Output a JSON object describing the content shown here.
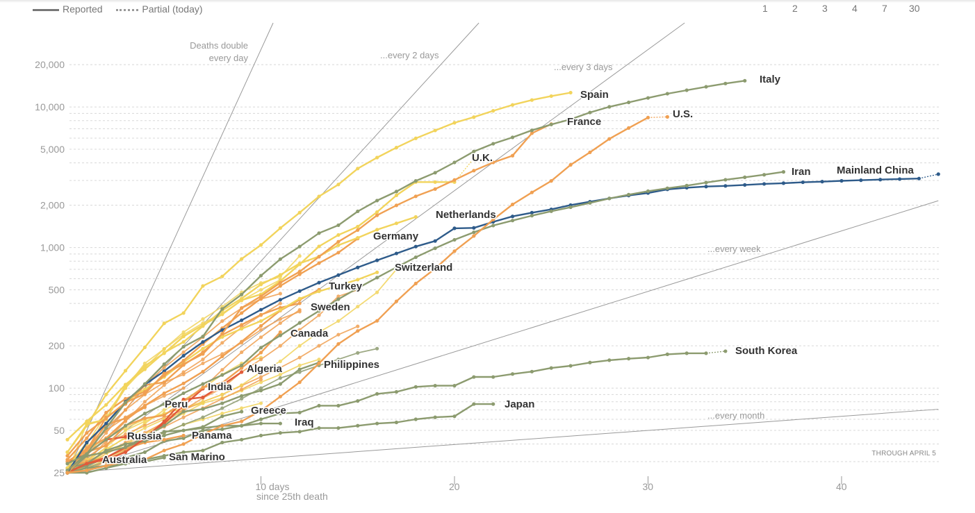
{
  "legend": {
    "reported": "Reported",
    "partial": "Partial (today)"
  },
  "doubling_selector": [
    "1",
    "2",
    "3",
    "4",
    "7",
    "30"
  ],
  "note": "THROUGH APRIL 5",
  "chart_data": {
    "type": "line",
    "xlabel": "since 25th death",
    "x_ticks": [
      {
        "value": 10,
        "label": "10 days"
      },
      {
        "value": 20,
        "label": "20"
      },
      {
        "value": 30,
        "label": "30"
      },
      {
        "value": 40,
        "label": "40"
      }
    ],
    "xlim": [
      0,
      45
    ],
    "y_scale": "log",
    "ylim": [
      25,
      30000
    ],
    "y_ticks": [
      {
        "value": 25,
        "label": "25"
      },
      {
        "value": 50,
        "label": "50"
      },
      {
        "value": 100,
        "label": "100"
      },
      {
        "value": 200,
        "label": "200"
      },
      {
        "value": 500,
        "label": "500"
      },
      {
        "value": 1000,
        "label": "1,000"
      },
      {
        "value": 2000,
        "label": "2,000"
      },
      {
        "value": 5000,
        "label": "5,000"
      },
      {
        "value": 10000,
        "label": "10,000"
      },
      {
        "value": 20000,
        "label": "20,000"
      }
    ],
    "grid": true,
    "colors": {
      "green": "#8c9b6f",
      "yellow": "#f2d45c",
      "orange": "#f0a052",
      "red": "#e15b3b",
      "blue": "#2e5b8a",
      "ref": "#999999"
    },
    "reference_lines": [
      {
        "doubling_days": 1,
        "label": [
          "Deaths double",
          "every day"
        ]
      },
      {
        "doubling_days": 2,
        "label": [
          "...every 2 days"
        ]
      },
      {
        "doubling_days": 3,
        "label": [
          "...every 3 days"
        ]
      },
      {
        "doubling_days": 7,
        "label": [
          "...every week"
        ]
      },
      {
        "doubling_days": 30,
        "label": [
          "...every month"
        ]
      }
    ],
    "series": [
      {
        "name": "Italy",
        "color": "green",
        "values": [
          29,
          34,
          52,
          79,
          107,
          148,
          197,
          233,
          366,
          463,
          631,
          827,
          1016,
          1266,
          1441,
          1809,
          2158,
          2503,
          2978,
          3405,
          4032,
          4825,
          5476,
          6077,
          6820,
          7503,
          8165,
          9134,
          10023,
          10779,
          11591,
          12428,
          13155,
          13915,
          14681,
          15362
        ]
      },
      {
        "name": "Spain",
        "color": "yellow",
        "values": [
          35,
          54,
          90,
          133,
          195,
          289,
          342,
          533,
          623,
          830,
          1043,
          1375,
          1772,
          2311,
          2808,
          3647,
          4365,
          5138,
          5982,
          6803,
          7716,
          8464,
          9387,
          10348,
          11198,
          11947,
          12641
        ]
      },
      {
        "name": "France",
        "color": "orange",
        "values": [
          33,
          48,
          61,
          79,
          91,
          127,
          148,
          175,
          244,
          372,
          450,
          562,
          674,
          860,
          1100,
          1331,
          1696,
          1995,
          2314,
          2606,
          3024,
          3523,
          4032,
          4503,
          6507,
          7560
        ]
      },
      {
        "name": "U.S.",
        "color": "orange",
        "values": [
          25,
          26,
          28,
          30,
          31,
          36,
          40,
          47,
          54,
          58,
          69,
          87,
          110,
          150,
          206,
          255,
          301,
          414,
          555,
          708,
          942,
          1209,
          1581,
          2026,
          2467,
          2978,
          3873,
          4757,
          5926,
          7087,
          8407
        ],
        "partial": 8500
      },
      {
        "name": "U.K.",
        "color": "yellow",
        "values": [
          35,
          55,
          60,
          104,
          144,
          177,
          233,
          281,
          335,
          422,
          465,
          578,
          759,
          1019,
          1228,
          1408,
          1789,
          2352,
          2921,
          2921,
          2921
        ],
        "partial": 4313
      },
      {
        "name": "Iran",
        "color": "green",
        "values": [
          26,
          34,
          43,
          54,
          66,
          77,
          92,
          107,
          124,
          145,
          194,
          237,
          291,
          354,
          429,
          514,
          611,
          724,
          853,
          988,
          1135,
          1284,
          1433,
          1556,
          1685,
          1812,
          1934,
          2077,
          2234,
          2378,
          2517,
          2640,
          2757,
          2898,
          3036,
          3160,
          3294,
          3452
        ]
      },
      {
        "name": "Mainland China",
        "color": "blue",
        "values": [
          25,
          41,
          56,
          80,
          106,
          132,
          170,
          213,
          259,
          304,
          361,
          425,
          490,
          563,
          637,
          722,
          811,
          908,
          1016,
          1113,
          1370,
          1380,
          1523,
          1665,
          1770,
          1868,
          2004,
          2118,
          2236,
          2345,
          2442,
          2592,
          2663,
          2715,
          2744,
          2788,
          2835,
          2870,
          2912,
          2943,
          2981,
          3012,
          3042,
          3070,
          3097
        ],
        "partial": 3326
      },
      {
        "name": "Netherlands",
        "color": "yellow",
        "values": [
          43,
          58,
          76,
          106,
          136,
          179,
          213,
          276,
          356,
          434,
          546,
          639,
          771,
          864,
          1039,
          1173,
          1339,
          1487,
          1651
        ]
      },
      {
        "name": "Germany",
        "color": "orange",
        "values": [
          31,
          44,
          67,
          84,
          94,
          123,
          157,
          206,
          267,
          342,
          433,
          533,
          645,
          775,
          920,
          1158
        ]
      },
      {
        "name": "Switzerland",
        "color": "yellow",
        "values": [
          27,
          41,
          56,
          80,
          98,
          120,
          153,
          191,
          231,
          264,
          300,
          359,
          433,
          488,
          536,
          591,
          666
        ]
      },
      {
        "name": "Turkey",
        "color": "orange",
        "values": [
          30,
          37,
          44,
          59,
          75,
          92,
          108,
          131,
          168,
          214,
          277,
          356,
          425,
          501
        ]
      },
      {
        "name": "Sweden",
        "color": "orange",
        "values": [
          25,
          36,
          62,
          77,
          105,
          110,
          146,
          180,
          239,
          282,
          333,
          373,
          401
        ]
      },
      {
        "name": "Canada",
        "color": "orange",
        "values": [
          25,
          35,
          39,
          54,
          61,
          64,
          80,
          101,
          109,
          139,
          179,
          250
        ]
      },
      {
        "name": "Philippines",
        "color": "green",
        "values": [
          25,
          33,
          35,
          38,
          45,
          54,
          68,
          71,
          78,
          88,
          96,
          107,
          136,
          152
        ]
      },
      {
        "name": "Algeria",
        "color": "red",
        "values": [
          25,
          29,
          31,
          35,
          44,
          58,
          83,
          86,
          105,
          130
        ]
      },
      {
        "name": "India",
        "color": "red",
        "values": [
          25,
          29,
          32,
          38,
          45,
          56,
          75,
          99
        ]
      },
      {
        "name": "Peru",
        "color": "orange",
        "values": [
          30,
          36,
          55,
          61,
          73
        ]
      },
      {
        "name": "Greece",
        "color": "green",
        "values": [
          26,
          28,
          32,
          38,
          43,
          49,
          50,
          53,
          63,
          68
        ]
      },
      {
        "name": "Iraq",
        "color": "green",
        "values": [
          27,
          29,
          36,
          40,
          42,
          46,
          50,
          52,
          54,
          54,
          56,
          56
        ]
      },
      {
        "name": "Panama",
        "color": "orange",
        "values": [
          27,
          30,
          32,
          37,
          41,
          43,
          46
        ]
      },
      {
        "name": "Russia",
        "color": "red",
        "values": [
          30,
          34,
          43,
          45
        ]
      },
      {
        "name": "Australia",
        "color": "orange",
        "values": [
          25,
          30
        ]
      },
      {
        "name": "San Marino",
        "color": "green",
        "values": [
          25,
          25,
          27,
          29,
          30,
          32
        ]
      },
      {
        "name": "South Korea",
        "color": "green",
        "values": [
          25,
          26,
          28,
          32,
          35,
          42,
          44,
          50,
          51,
          54,
          60,
          66,
          67,
          75,
          75,
          81,
          91,
          94,
          102,
          104,
          104,
          120,
          120,
          126,
          131,
          139,
          144,
          152,
          158,
          162,
          165,
          174,
          177,
          177
        ],
        "partial": 183
      },
      {
        "name": "Japan",
        "color": "green",
        "values": [
          25,
          27,
          28,
          29,
          31,
          33,
          35,
          36,
          41,
          43,
          46,
          48,
          49,
          52,
          52,
          54,
          56,
          57,
          60,
          62,
          63,
          77,
          77
        ]
      },
      {
        "color": "yellow",
        "values": [
          25,
          40,
          65,
          100,
          140,
          190,
          250,
          310,
          380,
          480,
          560,
          620,
          870
        ]
      },
      {
        "color": "orange",
        "values": [
          25,
          33,
          48,
          70,
          105,
          140,
          180,
          230,
          300,
          370,
          430,
          470
        ]
      },
      {
        "color": "orange",
        "values": [
          25,
          30,
          42,
          58,
          80,
          105,
          130,
          160,
          210,
          270,
          330,
          400
        ]
      },
      {
        "color": "yellow",
        "values": [
          25,
          28,
          36,
          45,
          56,
          70,
          82,
          100,
          125,
          150,
          165
        ]
      },
      {
        "color": "orange",
        "values": [
          25,
          35,
          52,
          70,
          90,
          110,
          125,
          150,
          175,
          210,
          260,
          310,
          350
        ]
      },
      {
        "color": "yellow",
        "values": [
          25,
          30,
          38,
          50,
          58,
          66,
          72,
          78,
          85,
          96,
          110,
          125,
          145,
          160
        ]
      },
      {
        "color": "orange",
        "values": [
          25,
          28,
          34,
          40,
          46,
          53,
          62,
          72,
          84,
          98,
          115
        ]
      },
      {
        "color": "yellow",
        "values": [
          25,
          27,
          31,
          36,
          42,
          48,
          55,
          60,
          66,
          72,
          78
        ]
      },
      {
        "color": "orange",
        "values": [
          25,
          32,
          40,
          47,
          54,
          62,
          70,
          80,
          90,
          104,
          120,
          140,
          165,
          200,
          240,
          275
        ]
      },
      {
        "color": "green",
        "values": [
          25,
          27,
          30,
          36,
          42,
          48,
          55,
          62,
          72,
          84,
          100,
          118,
          130,
          145,
          160,
          178,
          191
        ]
      },
      {
        "color": "yellow",
        "values": [
          25,
          29,
          34,
          40,
          47,
          56,
          66,
          78
        ]
      },
      {
        "color": "orange",
        "values": [
          25,
          38,
          50,
          62,
          75,
          88,
          100
        ]
      },
      {
        "color": "yellow",
        "values": [
          25,
          36,
          44,
          52,
          60,
          66,
          72,
          80,
          90,
          105,
          130,
          155,
          200,
          250,
          300,
          380,
          480,
          700
        ]
      },
      {
        "color": "orange",
        "values": [
          25,
          30,
          35,
          41,
          48,
          57,
          70,
          85,
          100,
          130,
          160,
          200,
          260,
          330,
          450,
          500
        ]
      },
      {
        "color": "yellow",
        "values": [
          25,
          31,
          37,
          44,
          52,
          60,
          68
        ]
      },
      {
        "color": "orange",
        "values": [
          25,
          26,
          30,
          36,
          45,
          57,
          75,
          100,
          135,
          180,
          230,
          290,
          360
        ]
      },
      {
        "color": "yellow",
        "values": [
          25,
          56,
          60,
          100,
          150,
          190,
          240,
          290,
          340,
          420,
          500,
          590
        ]
      }
    ]
  }
}
